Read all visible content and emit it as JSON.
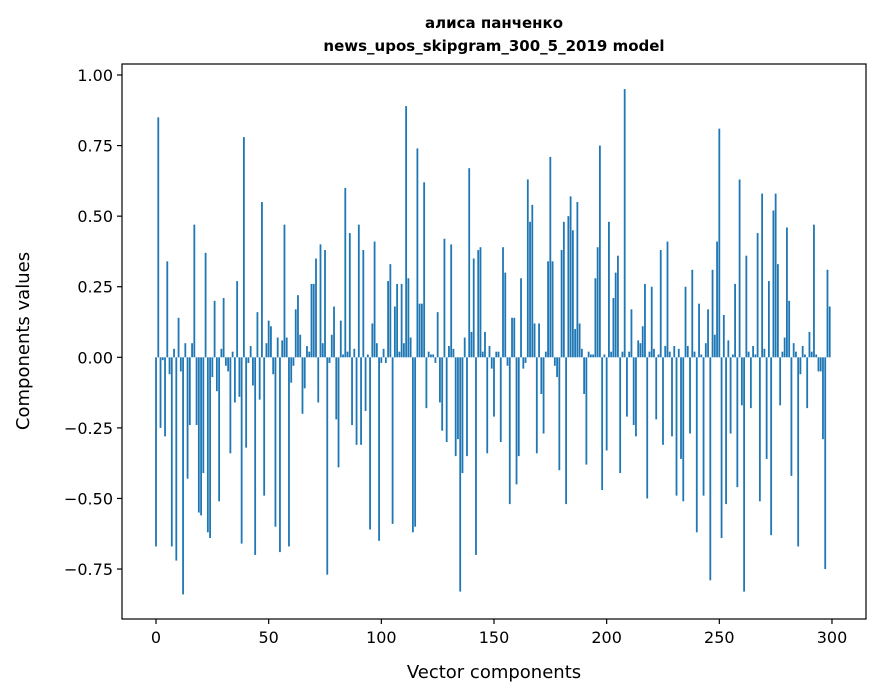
{
  "chart_data": {
    "type": "bar",
    "title": "алиса панченко",
    "subtitle": "news_upos_skipgram_300_5_2019 model",
    "xlabel": "Vector components",
    "ylabel": "Components values",
    "xlim": [
      -15.1,
      315.1
    ],
    "ylim": [
      -0.927,
      1.039
    ],
    "xticks": [
      0,
      50,
      100,
      150,
      200,
      250,
      300
    ],
    "xtick_labels": [
      "0",
      "50",
      "100",
      "150",
      "200",
      "250",
      "300"
    ],
    "yticks": [
      -0.75,
      -0.5,
      -0.25,
      0.0,
      0.25,
      0.5,
      0.75,
      1.0
    ],
    "ytick_labels": [
      "−0.75",
      "−0.50",
      "−0.25",
      "0.00",
      "0.25",
      "0.50",
      "0.75",
      "1.00"
    ],
    "grid": false,
    "bar_color": "#1f77b4",
    "values": [
      -0.67,
      0.85,
      -0.25,
      -0.01,
      -0.28,
      0.34,
      -0.06,
      -0.67,
      0.03,
      -0.72,
      0.14,
      -0.05,
      -0.84,
      0.05,
      -0.43,
      -0.24,
      0.05,
      0.47,
      -0.24,
      -0.55,
      -0.56,
      -0.41,
      0.37,
      -0.62,
      -0.64,
      -0.07,
      0.2,
      -0.12,
      -0.51,
      0.03,
      0.21,
      -0.03,
      -0.05,
      -0.34,
      0.02,
      -0.16,
      0.27,
      -0.14,
      -0.66,
      0.78,
      -0.32,
      -0.02,
      0.04,
      -0.1,
      -0.7,
      0.16,
      -0.15,
      0.55,
      -0.49,
      0.05,
      0.13,
      0.11,
      -0.06,
      -0.6,
      0.07,
      -0.69,
      0.06,
      0.47,
      0.07,
      -0.67,
      -0.09,
      -0.03,
      0.17,
      0.22,
      0.08,
      -0.2,
      -0.11,
      0.04,
      0.02,
      0.26,
      0.26,
      0.35,
      -0.16,
      0.4,
      0.05,
      0.38,
      -0.77,
      -0.02,
      0.08,
      0.18,
      -0.22,
      -0.39,
      0.13,
      0.01,
      0.6,
      0.02,
      0.44,
      -0.24,
      0.03,
      -0.31,
      0.47,
      -0.31,
      0.38,
      -0.19,
      0.01,
      -0.61,
      0.12,
      0.41,
      0.05,
      -0.65,
      -0.02,
      0.03,
      -0.02,
      0.27,
      0.33,
      -0.59,
      0.18,
      0.26,
      0.02,
      0.26,
      0.05,
      0.89,
      0.28,
      0.07,
      -0.62,
      -0.6,
      0.74,
      0.19,
      0.19,
      0.62,
      -0.18,
      0.02,
      0.01,
      0.01,
      -0.02,
      0.16,
      -0.16,
      -0.26,
      0.42,
      -0.3,
      0.04,
      0.4,
      0.03,
      -0.35,
      -0.29,
      -0.83,
      -0.41,
      0.07,
      -0.35,
      0.67,
      0.09,
      0.35,
      -0.7,
      0.38,
      0.39,
      0.02,
      0.09,
      -0.34,
      0.04,
      -0.04,
      -0.21,
      0.02,
      0.02,
      -0.3,
      0.39,
      0.3,
      -0.03,
      -0.52,
      0.14,
      0.14,
      -0.45,
      -0.35,
      0.28,
      -0.04,
      -0.02,
      0.63,
      0.48,
      0.54,
      0.12,
      -0.34,
      0.12,
      -0.13,
      -0.27,
      0.02,
      0.34,
      0.71,
      0.34,
      -0.03,
      -0.07,
      -0.4,
      0.38,
      0.48,
      -0.52,
      0.5,
      0.57,
      0.45,
      0.1,
      0.55,
      0.12,
      0.03,
      -0.13,
      -0.38,
      0.02,
      0.01,
      0.01,
      0.28,
      0.39,
      0.75,
      -0.47,
      0.01,
      -0.33,
      0.48,
      0.02,
      0.21,
      0.3,
      0.36,
      -0.41,
      0.02,
      0.95,
      -0.21,
      0.02,
      0.17,
      -0.24,
      -0.28,
      0.06,
      0.05,
      0.11,
      0.26,
      -0.5,
      0.02,
      0.25,
      0.03,
      -0.22,
      0.01,
      0.38,
      -0.31,
      0.04,
      0.41,
      0.02,
      -0.28,
      0.04,
      -0.49,
      0.03,
      -0.36,
      -0.51,
      0.25,
      0.04,
      -0.27,
      0.31,
      0.02,
      -0.62,
      0.19,
      0.01,
      -0.49,
      0.05,
      0.17,
      -0.79,
      0.31,
      0.08,
      0.41,
      0.81,
      -0.64,
      0.15,
      -0.52,
      0.06,
      -0.27,
      0.01,
      0.26,
      -0.46,
      0.63,
      -0.17,
      -0.83,
      0.36,
      0.02,
      -0.18,
      0.04,
      0.01,
      0.44,
      -0.51,
      0.58,
      0.03,
      -0.36,
      0.27,
      -0.63,
      0.52,
      0.58,
      0.33,
      -0.17,
      0.02,
      0.07,
      0.46,
      0.2,
      -0.42,
      0.05,
      0.02,
      -0.67,
      -0.06,
      0.04,
      0.01,
      -0.18,
      0.09,
      0.02,
      0.47,
      0.01,
      -0.05,
      -0.05,
      -0.29,
      -0.75,
      0.31,
      0.18
    ]
  }
}
